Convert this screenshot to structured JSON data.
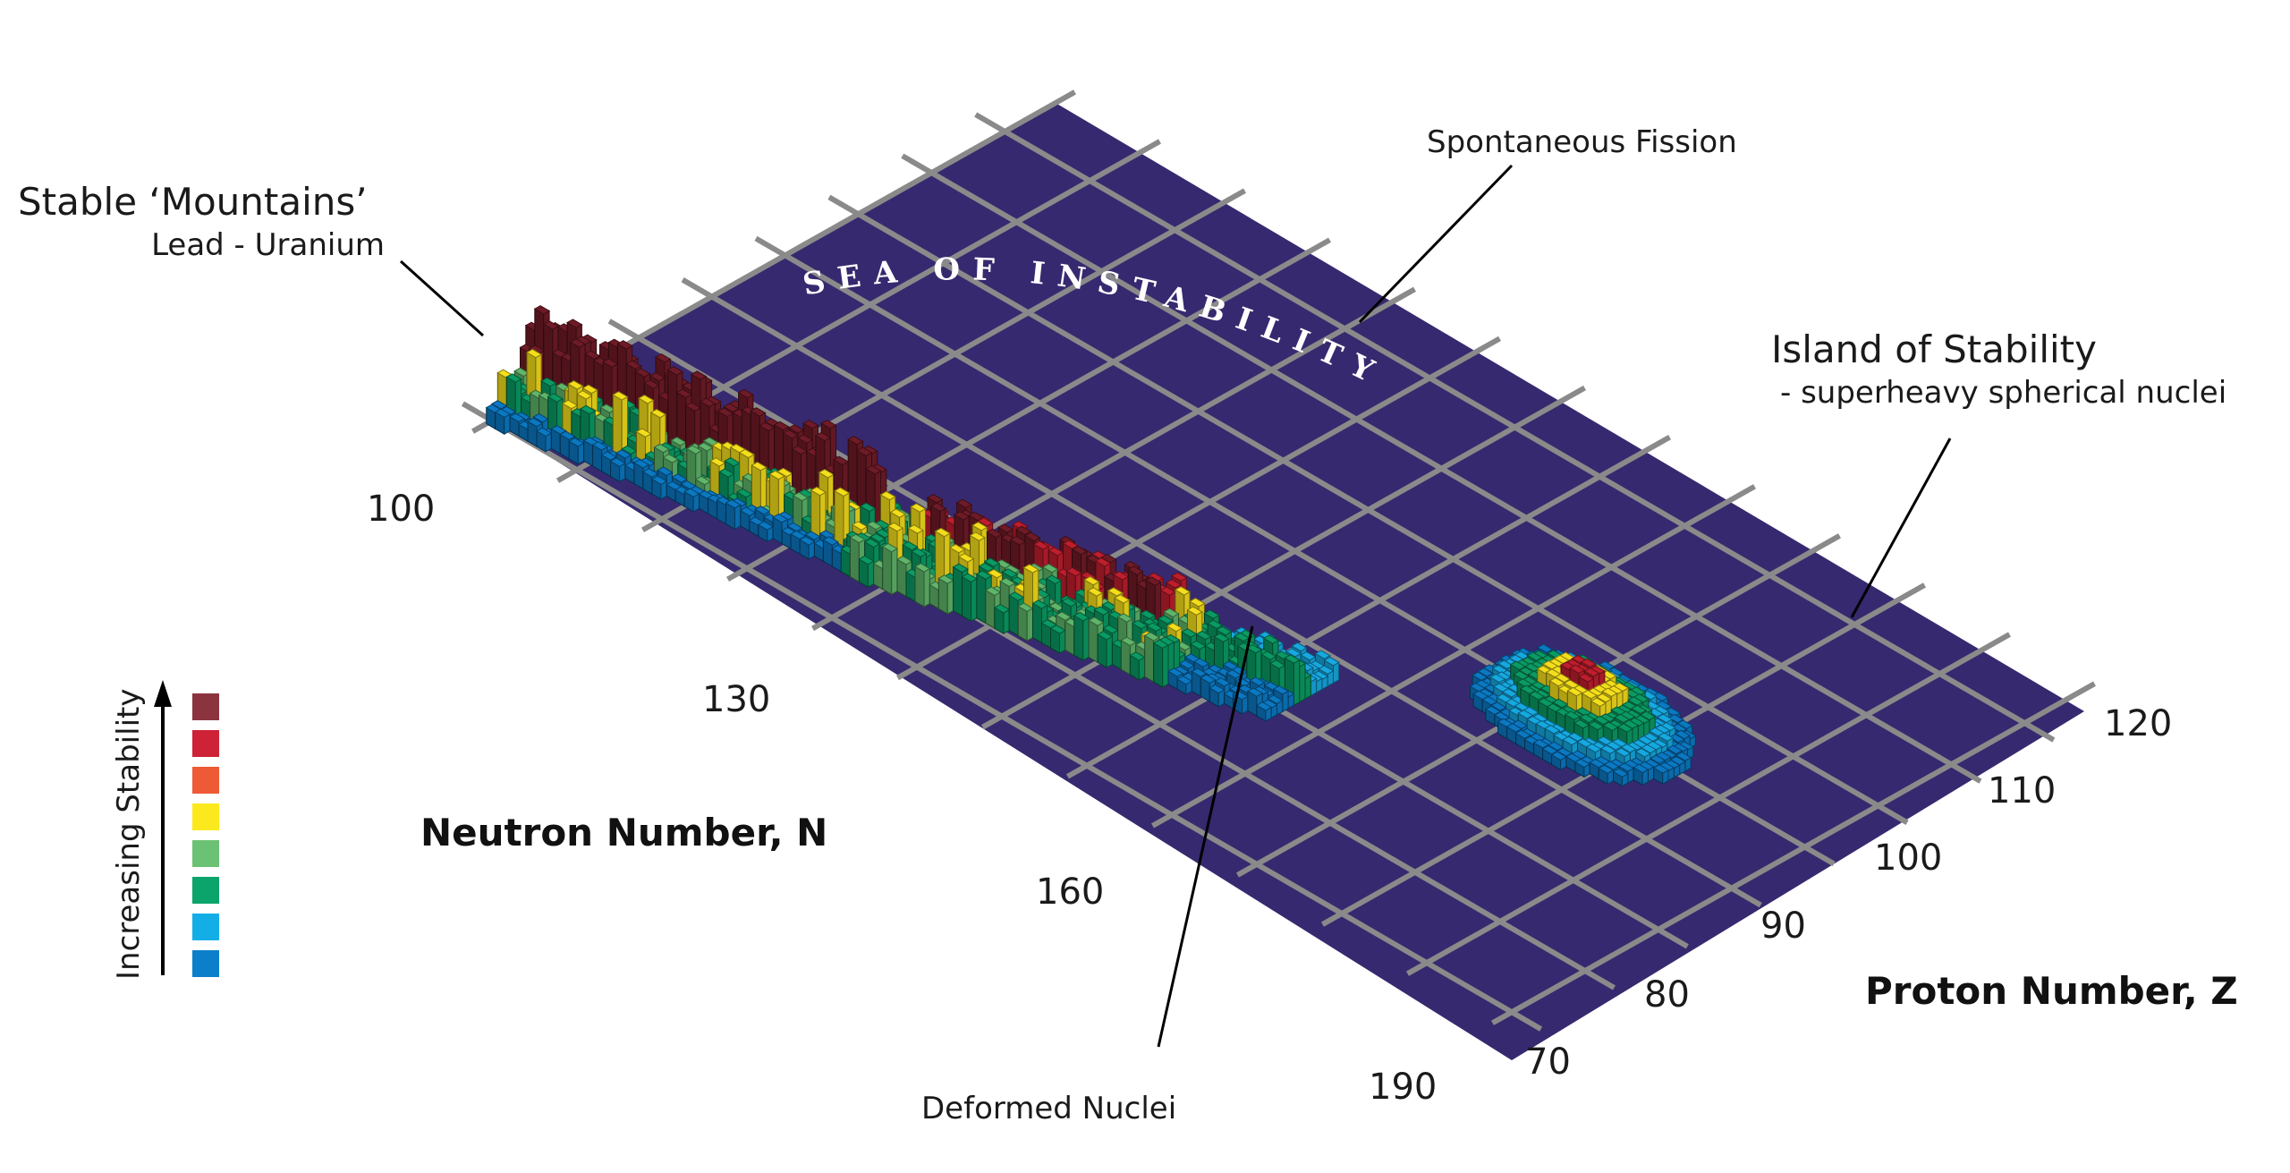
{
  "annotations": {
    "stable_mountains": "Stable ‘Mountains’",
    "lead_uranium": "Lead - Uranium",
    "spontaneous_fission": "Spontaneous Fission",
    "island_title": "Island of Stability",
    "island_sub": "- superheavy spherical nuclei",
    "deformed_nuclei": "Deformed Nuclei",
    "sea": "SEA OF INSTABILITY"
  },
  "axes": {
    "neutron_title": "Neutron Number, N",
    "proton_title": "Proton Number, Z",
    "neutron_ticks": [
      "100",
      "130",
      "160",
      "190"
    ],
    "proton_ticks": [
      "70",
      "80",
      "90",
      "100",
      "110",
      "120"
    ]
  },
  "legend": {
    "title": "Increasing Stability",
    "colors": [
      "#8B3440",
      "#CE2236",
      "#EE5A36",
      "#FBE91E",
      "#6CC274",
      "#0BA46A",
      "#14AEE7",
      "#0B7FC9"
    ]
  },
  "colors": {
    "sea": "#37296F",
    "grid": "#8A8A8A",
    "maroon": "#6F1B27",
    "red": "#BE1E2D",
    "orange": "#E9542E",
    "yellow": "#F4DE1B",
    "lightgreen": "#5FB56A",
    "green": "#0A9A63",
    "cyan": "#16A8E0",
    "blue": "#0B78C2"
  }
}
